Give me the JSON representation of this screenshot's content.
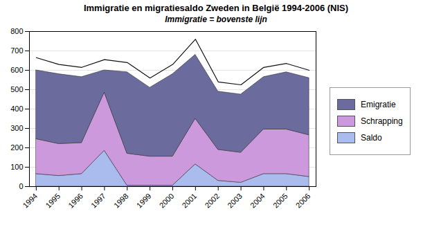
{
  "chart_data": {
    "type": "area",
    "title": "Immigratie en migratiesaldo Zweden in België 1994-2006 (NIS)",
    "subtitle": "Immigratie = bovenste lijn",
    "x": [
      1994,
      1995,
      1996,
      1997,
      1998,
      1999,
      2000,
      2001,
      2002,
      2003,
      2004,
      2005,
      2006
    ],
    "series": [
      {
        "name": "Saldo",
        "type": "area",
        "color": "#aabbee",
        "values": [
          65,
          55,
          65,
          185,
          5,
          5,
          5,
          115,
          30,
          20,
          65,
          65,
          50
        ]
      },
      {
        "name": "Schrapping",
        "type": "area",
        "color": "#cc99dd",
        "values": [
          180,
          165,
          160,
          300,
          165,
          150,
          150,
          235,
          160,
          155,
          230,
          230,
          215
        ]
      },
      {
        "name": "Emigratie",
        "type": "area",
        "color": "#6b6b9e",
        "values": [
          355,
          360,
          340,
          115,
          420,
          355,
          425,
          330,
          300,
          300,
          270,
          295,
          295
        ]
      },
      {
        "type": "line",
        "color": "#111111",
        "values": [
          665,
          630,
          615,
          655,
          640,
          560,
          630,
          760,
          540,
          525,
          615,
          635,
          600
        ]
      }
    ],
    "stacked": true,
    "xlim": [
      1993.7,
      2006.3
    ],
    "xticks": [
      1994,
      1995,
      1996,
      1997,
      1998,
      1999,
      2000,
      2001,
      2002,
      2003,
      2004,
      2005,
      2006
    ],
    "ylim": [
      0,
      800
    ],
    "yticks": [
      0,
      100,
      200,
      300,
      400,
      500,
      600,
      700,
      800
    ],
    "grid": true,
    "legend": "right"
  }
}
